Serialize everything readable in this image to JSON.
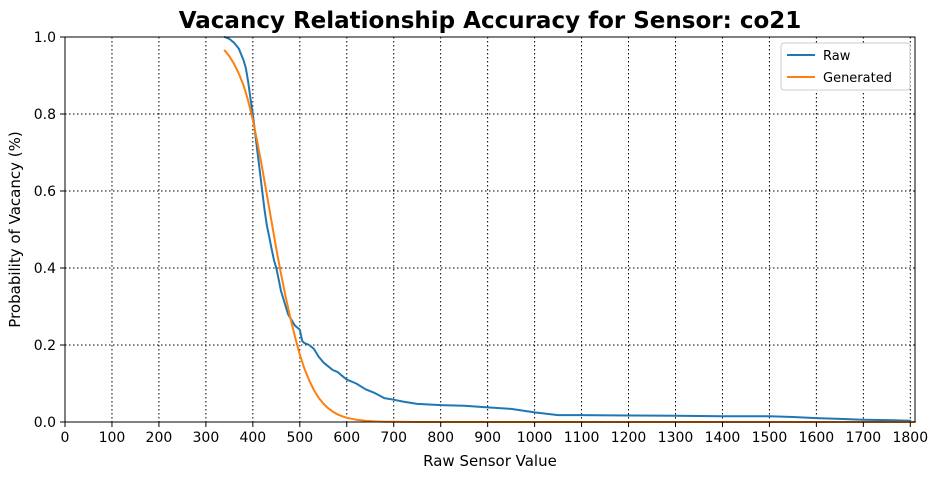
{
  "chart_data": {
    "type": "line",
    "title": "Vacancy Relationship Accuracy for Sensor: co21",
    "xlabel": "Raw Sensor Value",
    "ylabel": "Probability of Vacancy (%)",
    "xlim": [
      0,
      1810
    ],
    "ylim": [
      0,
      1.0
    ],
    "x_ticks": [
      0,
      100,
      200,
      300,
      400,
      500,
      600,
      700,
      800,
      900,
      1000,
      1100,
      1200,
      1300,
      1400,
      1500,
      1600,
      1700,
      1800
    ],
    "y_ticks": [
      0.0,
      0.2,
      0.4,
      0.6,
      0.8,
      1.0
    ],
    "x_tick_labels": [
      "0",
      "100",
      "200",
      "300",
      "400",
      "500",
      "600",
      "700",
      "800",
      "900",
      "1000",
      "1100",
      "1200",
      "1300",
      "1400",
      "1500",
      "1600",
      "1700",
      "1800"
    ],
    "y_tick_labels": [
      "0.0",
      "0.2",
      "0.4",
      "0.6",
      "0.8",
      "1.0"
    ],
    "grid": true,
    "grid_style": "dotted",
    "legend_position": "top-right",
    "series": [
      {
        "name": "Raw",
        "color": "#1f77b4",
        "x": [
          340,
          350,
          360,
          370,
          380,
          385,
          390,
          395,
          400,
          405,
          410,
          415,
          420,
          425,
          430,
          435,
          440,
          445,
          450,
          455,
          460,
          465,
          470,
          475,
          480,
          490,
          500,
          505,
          510,
          520,
          530,
          540,
          550,
          560,
          570,
          580,
          590,
          600,
          620,
          640,
          660,
          680,
          700,
          720,
          750,
          800,
          850,
          900,
          950,
          1000,
          1050,
          1100,
          1200,
          1300,
          1400,
          1500,
          1550,
          1600,
          1650,
          1700,
          1750,
          1800
        ],
        "y": [
          1.0,
          0.995,
          0.985,
          0.97,
          0.94,
          0.92,
          0.885,
          0.84,
          0.8,
          0.75,
          0.7,
          0.65,
          0.6,
          0.55,
          0.51,
          0.48,
          0.45,
          0.42,
          0.4,
          0.37,
          0.34,
          0.32,
          0.3,
          0.28,
          0.27,
          0.25,
          0.24,
          0.21,
          0.205,
          0.2,
          0.19,
          0.17,
          0.155,
          0.145,
          0.135,
          0.13,
          0.12,
          0.11,
          0.1,
          0.085,
          0.075,
          0.062,
          0.058,
          0.053,
          0.047,
          0.044,
          0.042,
          0.038,
          0.034,
          0.025,
          0.018,
          0.018,
          0.017,
          0.016,
          0.015,
          0.015,
          0.013,
          0.01,
          0.008,
          0.006,
          0.005,
          0.003
        ]
      },
      {
        "name": "Generated",
        "color": "#ff7f0e",
        "x": [
          340,
          350,
          360,
          370,
          380,
          390,
          400,
          410,
          420,
          430,
          440,
          450,
          460,
          470,
          480,
          490,
          500,
          510,
          520,
          530,
          540,
          550,
          560,
          570,
          580,
          590,
          600,
          620,
          640,
          660,
          680,
          700,
          750,
          800,
          900,
          1000,
          1200,
          1400,
          1600,
          1810
        ],
        "y": [
          0.965,
          0.95,
          0.93,
          0.905,
          0.875,
          0.835,
          0.785,
          0.725,
          0.66,
          0.59,
          0.52,
          0.45,
          0.385,
          0.325,
          0.27,
          0.22,
          0.175,
          0.138,
          0.108,
          0.083,
          0.063,
          0.048,
          0.036,
          0.027,
          0.02,
          0.015,
          0.011,
          0.006,
          0.003,
          0.0016,
          0.0008,
          0.0004,
          0.0001,
          0.0,
          0.0,
          0.0,
          0.0,
          0.0,
          0.0,
          0.0
        ]
      }
    ]
  }
}
